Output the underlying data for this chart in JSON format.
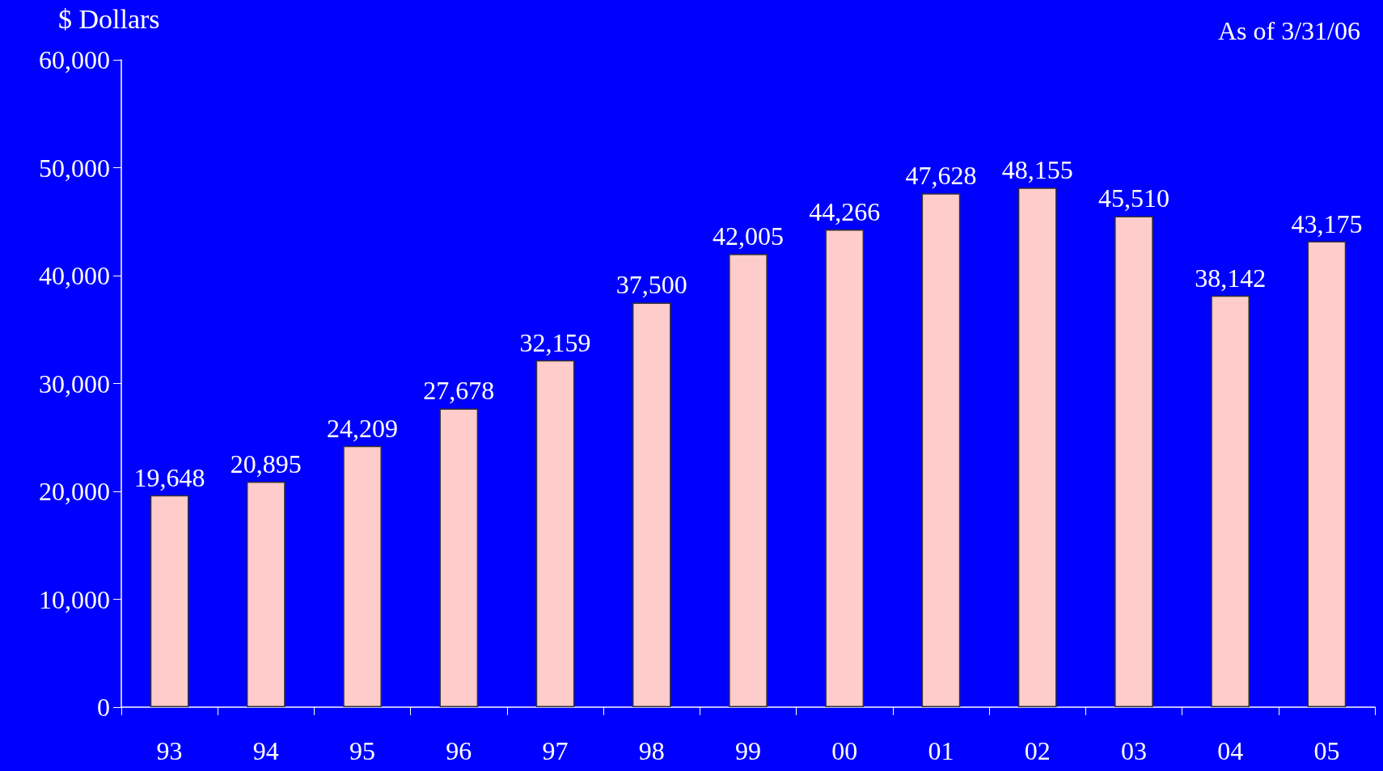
{
  "chart_data": {
    "type": "bar",
    "ylabel": "$ Dollars",
    "annotations": [
      "As of 3/31/06"
    ],
    "categories": [
      "93",
      "94",
      "95",
      "96",
      "97",
      "98",
      "99",
      "00",
      "01",
      "02",
      "03",
      "04",
      "05"
    ],
    "values": [
      19648,
      20895,
      24209,
      27678,
      32159,
      37500,
      42005,
      44266,
      47628,
      48155,
      45510,
      38142,
      43175
    ],
    "value_labels": [
      "19,648",
      "20,895",
      "24,209",
      "27,678",
      "32,159",
      "37,500",
      "42,005",
      "44,266",
      "47,628",
      "48,155",
      "45,510",
      "38,142",
      "43,175"
    ],
    "color": "#ffcccc",
    "ylim": [
      0,
      60000
    ],
    "yticks": [
      0,
      {
        "value": 10000,
        "label": "10,000"
      },
      {
        "value": 20000,
        "label": "20,000"
      },
      {
        "value": 30000,
        "label": "30,000"
      },
      {
        "value": 40000,
        "label": "40,000"
      },
      {
        "value": 50000,
        "label": "50,000"
      },
      {
        "value": 60000,
        "label": "60,000"
      }
    ],
    "grid": false
  }
}
